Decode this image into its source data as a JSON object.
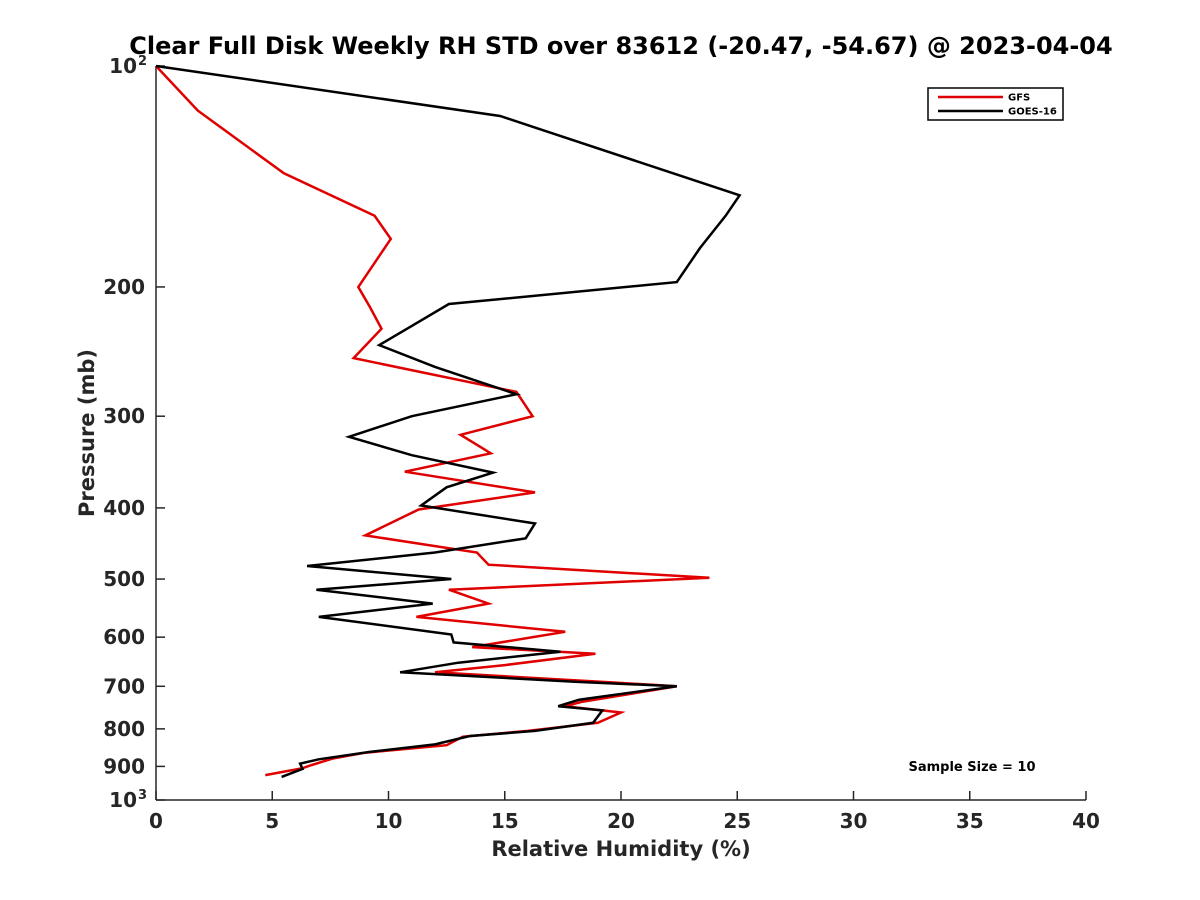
{
  "chart_data": {
    "type": "line",
    "title": "Clear Full Disk Weekly RH STD over 83612 (-20.47, -54.67) @ 2023-04-04",
    "xlabel": "Relative Humidity (%)",
    "ylabel": "Pressure (mb)",
    "xlim": [
      0,
      40
    ],
    "ylim": [
      100,
      1000
    ],
    "y_scale": "log",
    "y_reversed": true,
    "grid": false,
    "legend_position": "top-right",
    "x_ticks": [
      0,
      5,
      10,
      15,
      20,
      25,
      30,
      35,
      40
    ],
    "y_ticks": [
      {
        "value": 100,
        "label": "10",
        "exp": "2"
      },
      {
        "value": 200,
        "label": "200",
        "exp": ""
      },
      {
        "value": 300,
        "label": "300",
        "exp": ""
      },
      {
        "value": 400,
        "label": "400",
        "exp": ""
      },
      {
        "value": 500,
        "label": "500",
        "exp": ""
      },
      {
        "value": 600,
        "label": "600",
        "exp": ""
      },
      {
        "value": 700,
        "label": "700",
        "exp": ""
      },
      {
        "value": 800,
        "label": "800",
        "exp": ""
      },
      {
        "value": 900,
        "label": "900",
        "exp": ""
      },
      {
        "value": 1000,
        "label": "10",
        "exp": "3"
      }
    ],
    "annotation": "Sample Size = 10",
    "series": [
      {
        "name": "GFS",
        "color": "#e00000",
        "points": [
          [
            0.0,
            100
          ],
          [
            1.8,
            115
          ],
          [
            5.5,
            140
          ],
          [
            9.4,
            160
          ],
          [
            10.1,
            172
          ],
          [
            8.7,
            200
          ],
          [
            9.2,
            213
          ],
          [
            9.7,
            228
          ],
          [
            8.5,
            250
          ],
          [
            15.5,
            278
          ],
          [
            16.2,
            300
          ],
          [
            13.1,
            318
          ],
          [
            14.4,
            337
          ],
          [
            10.7,
            357
          ],
          [
            16.3,
            381
          ],
          [
            11.3,
            402
          ],
          [
            9.0,
            436
          ],
          [
            13.8,
            460
          ],
          [
            14.3,
            478
          ],
          [
            23.8,
            498
          ],
          [
            12.6,
            517
          ],
          [
            14.3,
            540
          ],
          [
            11.2,
            563
          ],
          [
            17.6,
            590
          ],
          [
            13.6,
            619
          ],
          [
            18.9,
            632
          ],
          [
            15.0,
            655
          ],
          [
            12.0,
            670
          ],
          [
            19.5,
            691
          ],
          [
            22.4,
            700
          ],
          [
            18.3,
            735
          ],
          [
            17.6,
            745
          ],
          [
            20.0,
            760
          ],
          [
            19.0,
            785
          ],
          [
            16.0,
            805
          ],
          [
            13.2,
            820
          ],
          [
            12.5,
            842
          ],
          [
            9.0,
            862
          ],
          [
            7.6,
            878
          ],
          [
            6.7,
            896
          ],
          [
            6.3,
            905
          ],
          [
            4.7,
            925
          ]
        ]
      },
      {
        "name": "GOES-16",
        "color": "#000000",
        "points": [
          [
            0.0,
            100
          ],
          [
            14.8,
            117
          ],
          [
            25.1,
            150
          ],
          [
            24.5,
            160
          ],
          [
            23.4,
            177
          ],
          [
            22.4,
            197
          ],
          [
            12.6,
            211
          ],
          [
            11.0,
            226
          ],
          [
            9.6,
            240
          ],
          [
            12.0,
            257
          ],
          [
            15.5,
            280
          ],
          [
            11.0,
            300
          ],
          [
            8.3,
            320
          ],
          [
            11.0,
            339
          ],
          [
            14.5,
            358
          ],
          [
            12.5,
            375
          ],
          [
            11.4,
            397
          ],
          [
            16.3,
            420
          ],
          [
            15.9,
            440
          ],
          [
            12.0,
            460
          ],
          [
            6.5,
            480
          ],
          [
            12.7,
            500
          ],
          [
            6.9,
            517
          ],
          [
            11.9,
            540
          ],
          [
            7.0,
            563
          ],
          [
            12.7,
            595
          ],
          [
            12.8,
            610
          ],
          [
            17.4,
            628
          ],
          [
            13.0,
            650
          ],
          [
            10.5,
            670
          ],
          [
            18.0,
            690
          ],
          [
            22.4,
            700
          ],
          [
            18.2,
            730
          ],
          [
            17.3,
            745
          ],
          [
            19.2,
            755
          ],
          [
            18.8,
            785
          ],
          [
            16.3,
            805
          ],
          [
            13.5,
            818
          ],
          [
            12.0,
            840
          ],
          [
            9.2,
            860
          ],
          [
            7.0,
            880
          ],
          [
            6.2,
            892
          ],
          [
            6.3,
            907
          ],
          [
            5.4,
            930
          ]
        ]
      }
    ]
  }
}
